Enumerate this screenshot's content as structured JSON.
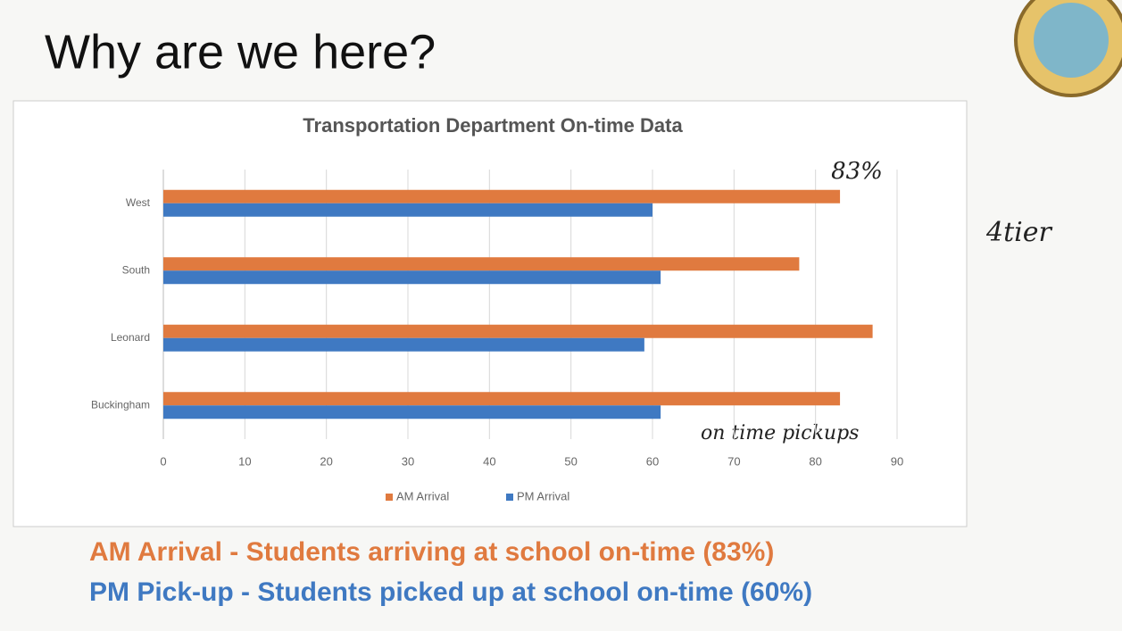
{
  "slide_title": "Why are we here?",
  "chart_data": {
    "type": "bar",
    "orientation": "horizontal",
    "title": "Transportation Department On-time Data",
    "categories": [
      "West",
      "South",
      "Leonard",
      "Buckingham"
    ],
    "series": [
      {
        "name": "AM Arrival",
        "color": "#e07a3f",
        "values": [
          83,
          78,
          87,
          83
        ]
      },
      {
        "name": "PM Arrival",
        "color": "#3f79c2",
        "values": [
          60,
          61,
          59,
          61
        ]
      }
    ],
    "xlim": [
      0,
      90
    ],
    "xticks": [
      0,
      10,
      20,
      30,
      40,
      50,
      60,
      70,
      80,
      90
    ],
    "grid": true,
    "legend": "bottom"
  },
  "annotations": [
    "83%",
    "4tier",
    "on time pickups"
  ],
  "notes": [
    "AM Arrival - Students arriving at school on-time (83%)",
    "PM Pick-up - Students picked up at school on-time (60%)"
  ]
}
